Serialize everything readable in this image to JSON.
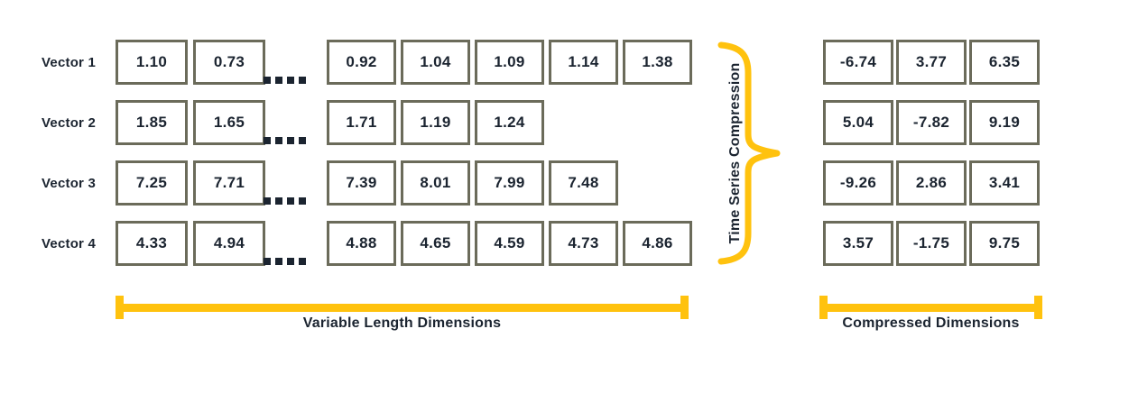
{
  "diagram_title": "Time Series Compression",
  "colors": {
    "accent_yellow": "#FFC20E",
    "ink": "#1B2430",
    "box_border": "#6B6B5A",
    "background": "#FFFFFF"
  },
  "vectors": [
    {
      "label": "Vector 1",
      "head": [
        "1.10",
        "0.73"
      ],
      "tail": [
        "0.92",
        "1.04",
        "1.09",
        "1.14",
        "1.38"
      ],
      "compressed": [
        "-6.74",
        "3.77",
        "6.35"
      ]
    },
    {
      "label": "Vector 2",
      "head": [
        "1.85",
        "1.65"
      ],
      "tail": [
        "1.71",
        "1.19",
        "1.24"
      ],
      "compressed": [
        "5.04",
        "-7.82",
        "9.19"
      ]
    },
    {
      "label": "Vector 3",
      "head": [
        "7.25",
        "7.71"
      ],
      "tail": [
        "7.39",
        "8.01",
        "7.99",
        "7.48"
      ],
      "compressed": [
        "-9.26",
        "2.86",
        "3.41"
      ]
    },
    {
      "label": "Vector 4",
      "head": [
        "4.33",
        "4.94"
      ],
      "tail": [
        "4.88",
        "4.65",
        "4.59",
        "4.73",
        "4.86"
      ],
      "compressed": [
        "3.57",
        "-1.75",
        "9.75"
      ]
    }
  ],
  "ellipsis": {
    "dot_count": 4
  },
  "brace": {
    "label": "Time Series Compression"
  },
  "brackets": {
    "left_label": "Variable Length Dimensions",
    "right_label": "Compressed Dimensions"
  }
}
